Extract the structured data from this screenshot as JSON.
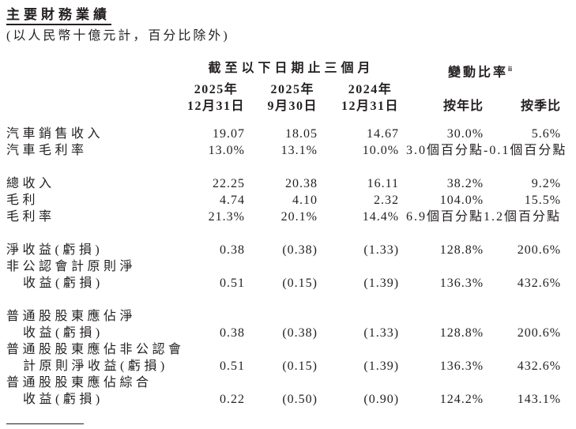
{
  "page": {
    "title": "主要財務業績",
    "subtitle": "(以人民幣十億元計，百分比除外)"
  },
  "table": {
    "group_headers": {
      "period": "截至以下日期止三個月",
      "change": "變動比率",
      "change_sup": "ii"
    },
    "period_columns": [
      {
        "year": "2025年",
        "date": "12月31日"
      },
      {
        "year": "2025年",
        "date": "9月30日"
      },
      {
        "year": "2024年",
        "date": "12月31日"
      }
    ],
    "change_columns": [
      {
        "label": "按年比"
      },
      {
        "label": "按季比"
      }
    ],
    "rows": [
      {
        "label": "汽車銷售收入",
        "values": [
          "19.07",
          "18.05",
          "14.67",
          "30.0%",
          "5.6%"
        ]
      },
      {
        "label": "汽車毛利率",
        "values": [
          "13.0%",
          "13.1%",
          "10.0%",
          "3.0個百分點",
          "-0.1個百分點"
        ]
      },
      {
        "spacer": true
      },
      {
        "label": "總收入",
        "values": [
          "22.25",
          "20.38",
          "16.11",
          "38.2%",
          "9.2%"
        ]
      },
      {
        "label": "毛利",
        "values": [
          "4.74",
          "4.10",
          "2.32",
          "104.0%",
          "15.5%"
        ]
      },
      {
        "label": "毛利率",
        "values": [
          "21.3%",
          "20.1%",
          "14.4%",
          "6.9個百分點",
          "1.2個百分點"
        ]
      },
      {
        "spacer": true
      },
      {
        "label": "淨收益(虧損)",
        "values": [
          "0.38",
          "(0.38)",
          "(1.33)",
          "128.8%",
          "200.6%"
        ]
      },
      {
        "label": "非公認會計原則淨",
        "values": null
      },
      {
        "label": "收益(虧損)",
        "indent": true,
        "values": [
          "0.51",
          "(0.15)",
          "(1.39)",
          "136.3%",
          "432.6%"
        ]
      },
      {
        "spacer": true
      },
      {
        "label": "普通股股東應佔淨",
        "values": null
      },
      {
        "label": "收益(虧損)",
        "indent": true,
        "values": [
          "0.38",
          "(0.38)",
          "(1.33)",
          "128.8%",
          "200.6%"
        ]
      },
      {
        "label": "普通股股東應佔非公認會",
        "values": null
      },
      {
        "label": "計原則淨收益(虧損)",
        "indent": true,
        "values": [
          "0.51",
          "(0.15)",
          "(1.39)",
          "136.3%",
          "432.6%"
        ]
      },
      {
        "label": "普通股股東應佔綜合",
        "values": null
      },
      {
        "label": "收益(虧損)",
        "indent": true,
        "values": [
          "0.22",
          "(0.50)",
          "(0.90)",
          "124.2%",
          "143.1%"
        ]
      }
    ]
  }
}
